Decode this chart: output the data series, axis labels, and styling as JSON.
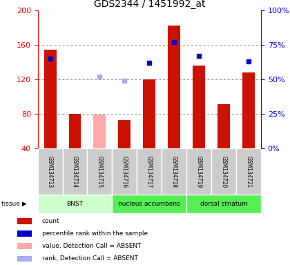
{
  "title": "GDS2344 / 1451992_at",
  "samples": [
    "GSM134713",
    "GSM134714",
    "GSM134715",
    "GSM134716",
    "GSM134717",
    "GSM134718",
    "GSM134719",
    "GSM134720",
    "GSM134721"
  ],
  "count_values": [
    155,
    80,
    null,
    73,
    120,
    183,
    136,
    91,
    128
  ],
  "count_absent_values": [
    null,
    null,
    79,
    null,
    null,
    null,
    null,
    null,
    null
  ],
  "rank_percent": [
    65,
    null,
    null,
    null,
    62,
    77,
    67,
    null,
    63
  ],
  "rank_absent_percent": [
    null,
    null,
    52,
    49,
    null,
    null,
    null,
    null,
    null
  ],
  "ylim_left": [
    40,
    200
  ],
  "ylim_right": [
    0,
    100
  ],
  "yticks_left": [
    40,
    80,
    120,
    160,
    200
  ],
  "yticks_right": [
    0,
    25,
    50,
    75,
    100
  ],
  "count_color": "#cc1100",
  "absent_count_color": "#ffaaaa",
  "rank_color": "#0000cc",
  "rank_absent_color": "#aaaaee",
  "grid_color": "#888888",
  "bg_label": "#cccccc",
  "bg_tissue_bnst": "#ccffcc",
  "bg_tissue_na": "#55ee55",
  "bg_tissue_ds": "#55ee55",
  "tissue_defs": [
    {
      "label": "BNST",
      "start": 0,
      "end": 3,
      "color_key": "bg_tissue_bnst"
    },
    {
      "label": "nucleus accumbens",
      "start": 3,
      "end": 6,
      "color_key": "bg_tissue_na"
    },
    {
      "label": "dorsal striatum",
      "start": 6,
      "end": 9,
      "color_key": "bg_tissue_ds"
    }
  ],
  "legend_items": [
    {
      "color": "#cc1100",
      "label": "count"
    },
    {
      "color": "#0000cc",
      "label": "percentile rank within the sample"
    },
    {
      "color": "#ffaaaa",
      "label": "value, Detection Call = ABSENT"
    },
    {
      "color": "#aaaaee",
      "label": "rank, Detection Call = ABSENT"
    }
  ]
}
